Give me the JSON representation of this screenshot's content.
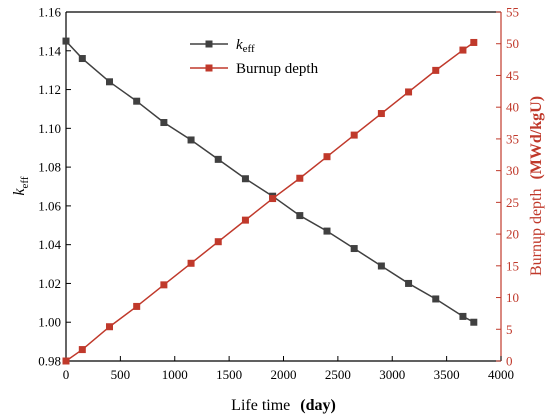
{
  "chart_data": {
    "type": "line",
    "x": [
      0,
      150,
      400,
      650,
      900,
      1150,
      1400,
      1650,
      1900,
      2150,
      2400,
      2650,
      2900,
      3150,
      3400,
      3650,
      3750
    ],
    "xlabel": {
      "main": "Life time",
      "unit": "(day)"
    },
    "xlim": [
      0,
      4000
    ],
    "xticks": [
      0,
      500,
      1000,
      1500,
      2000,
      2500,
      3000,
      3500,
      4000
    ],
    "series": [
      {
        "name": {
          "base": "k",
          "sub": "eff"
        },
        "axis": "left",
        "color": "#404040",
        "values": [
          1.145,
          1.136,
          1.124,
          1.114,
          1.103,
          1.094,
          1.084,
          1.074,
          1.065,
          1.055,
          1.047,
          1.038,
          1.029,
          1.02,
          1.012,
          1.003,
          1.0
        ]
      },
      {
        "name": "Burnup depth",
        "axis": "right",
        "color": "#c0392b",
        "values": [
          0,
          1.8,
          5.4,
          8.6,
          12.0,
          15.4,
          18.8,
          22.2,
          25.6,
          28.8,
          32.2,
          35.6,
          39.0,
          42.4,
          45.8,
          49.0,
          50.2
        ]
      }
    ],
    "ylabel_left": {
      "base": "k",
      "sub": "eff"
    },
    "ylim_left": [
      0.98,
      1.16
    ],
    "yticks_left": [
      "0.98",
      "1.00",
      "1.02",
      "1.04",
      "1.06",
      "1.08",
      "1.10",
      "1.12",
      "1.14",
      "1.16"
    ],
    "ylabel_right": {
      "main": "Burnup depth",
      "unit": "(MWd/kgU)"
    },
    "ylim_right": [
      0,
      55
    ],
    "yticks_right": [
      "0",
      "5",
      "10",
      "15",
      "20",
      "25",
      "30",
      "35",
      "40",
      "45",
      "50",
      "55"
    ],
    "legend_position": "top-center",
    "grid": false,
    "colors": {
      "axis_left": "#000000",
      "axis_right": "#c0392b"
    }
  }
}
